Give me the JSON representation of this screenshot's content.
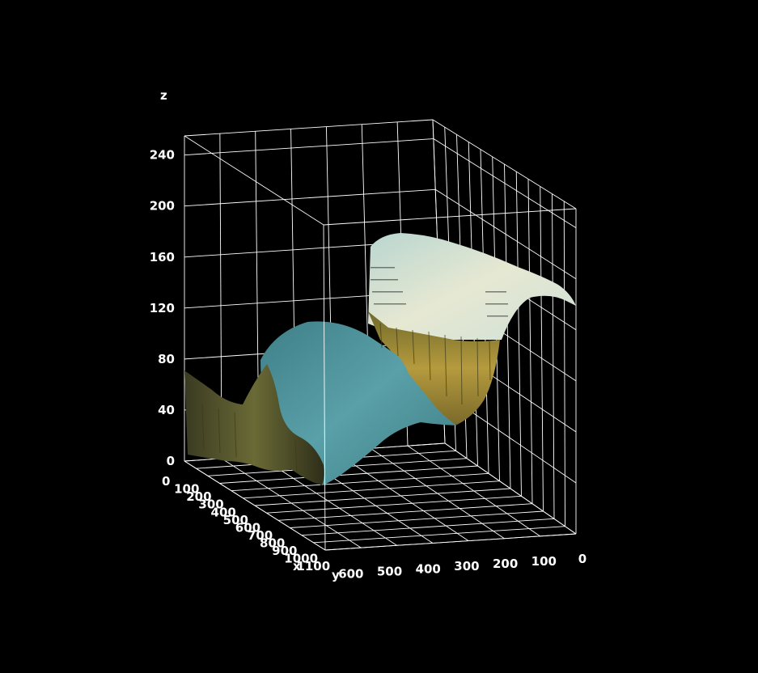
{
  "chart_data": {
    "type": "surface",
    "title": "",
    "x_label": "x",
    "y_label": "y",
    "z_label": "z",
    "x_ticks": [
      "0",
      "100",
      "200",
      "300",
      "400",
      "500",
      "600",
      "700",
      "800",
      "900",
      "1000",
      "1100"
    ],
    "y_ticks": [
      "600",
      "500",
      "400",
      "300",
      "200",
      "100",
      "0"
    ],
    "z_ticks": [
      "0",
      "40",
      "80",
      "120",
      "160",
      "200",
      "240"
    ],
    "x_range": [
      0,
      1150
    ],
    "y_range": [
      0,
      650
    ],
    "z_range": [
      0,
      255
    ],
    "grid": true,
    "background": "#000000",
    "texture": "photo of a mountain lake with forest, mapped onto the surface",
    "surface_colors": {
      "sky": "#d8e6da",
      "water": "#4a8f9a",
      "forest": "#8a7a2e",
      "rock": "#4a4a2a"
    }
  }
}
